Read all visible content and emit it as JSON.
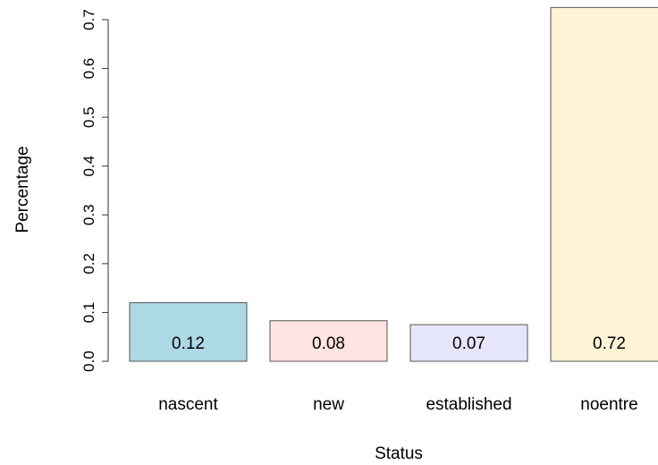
{
  "chart_data": {
    "type": "bar",
    "categories": [
      "nascent",
      "new",
      "established",
      "noentre"
    ],
    "values": [
      0.12,
      0.08,
      0.07,
      0.72
    ],
    "bar_heights": [
      0.12,
      0.083,
      0.075,
      0.725
    ],
    "data_labels": [
      "0.12",
      "0.08",
      "0.07",
      "0.72"
    ],
    "colors": [
      "#add8e6",
      "#ffe4e1",
      "#e6e6fa",
      "#fff3d6"
    ],
    "xlabel": "Status",
    "ylabel": "Percentage",
    "ylim": [
      0,
      0.7
    ],
    "yticks": [
      0,
      0.1,
      0.2,
      0.3,
      0.4,
      0.5,
      0.6,
      0.7
    ],
    "ytick_labels": [
      "0.0",
      "0.1",
      "0.2",
      "0.3",
      "0.4",
      "0.5",
      "0.6",
      "0.7"
    ],
    "grid": false,
    "legend": "none"
  }
}
